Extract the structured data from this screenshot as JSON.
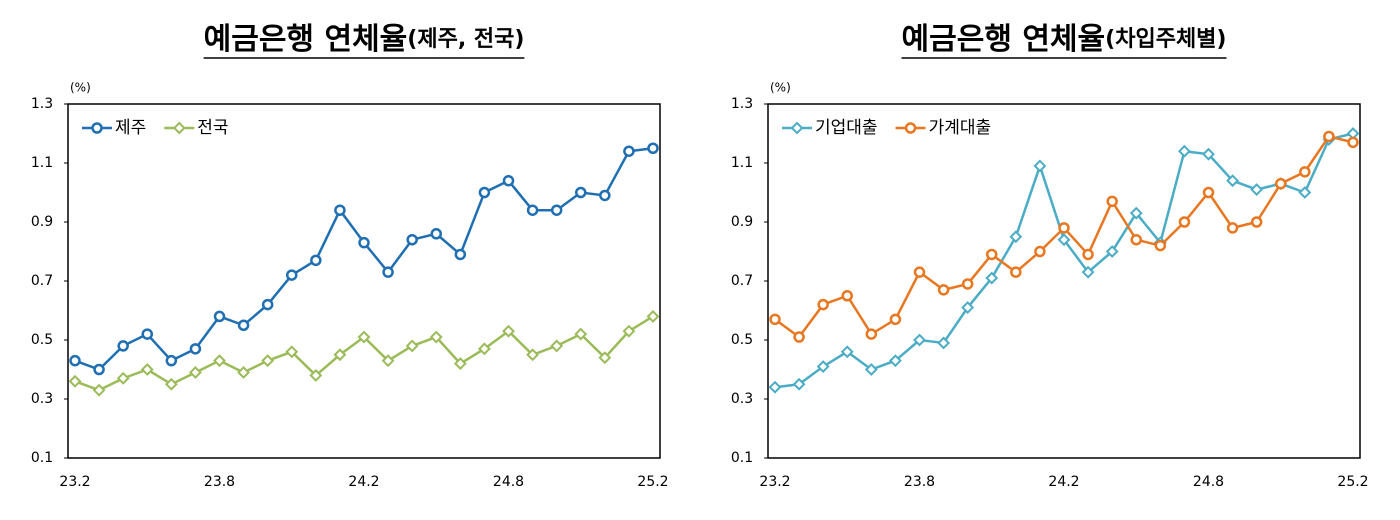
{
  "chart_data": [
    {
      "type": "line",
      "title": "예금은행 연체율",
      "title_note": "(제주, 전국)",
      "unit": "(%)",
      "categories": [
        "23.2",
        null,
        null,
        null,
        null,
        null,
        "23.8",
        null,
        null,
        null,
        null,
        null,
        "24.2",
        null,
        null,
        null,
        null,
        null,
        "24.8",
        null,
        null,
        null,
        null,
        null,
        "25.2"
      ],
      "series": [
        {
          "name": "제주",
          "color": "#1f6fb2",
          "marker": "circle",
          "values": [
            0.43,
            0.4,
            0.48,
            0.52,
            0.43,
            0.47,
            0.58,
            0.55,
            0.62,
            0.72,
            0.77,
            0.94,
            0.83,
            0.73,
            0.84,
            0.86,
            0.79,
            1.0,
            1.04,
            0.94,
            0.94,
            1.0,
            0.99,
            1.14,
            1.15
          ]
        },
        {
          "name": "전국",
          "color": "#9bbb59",
          "marker": "diamond",
          "values": [
            0.36,
            0.33,
            0.37,
            0.4,
            0.35,
            0.39,
            0.43,
            0.39,
            0.43,
            0.46,
            0.38,
            0.45,
            0.51,
            0.43,
            0.48,
            0.51,
            0.42,
            0.47,
            0.53,
            0.45,
            0.48,
            0.52,
            0.44,
            0.53,
            0.58
          ]
        }
      ],
      "ylim": [
        0.1,
        1.3
      ],
      "yticks": [
        0.1,
        0.3,
        0.5,
        0.7,
        0.9,
        1.1,
        1.3
      ],
      "legend": "upper left"
    },
    {
      "type": "line",
      "title": "예금은행 연체율",
      "title_note": "(차입주체별)",
      "unit": "(%)",
      "categories": [
        "23.2",
        null,
        null,
        null,
        null,
        null,
        "23.8",
        null,
        null,
        null,
        null,
        null,
        "24.2",
        null,
        null,
        null,
        null,
        null,
        "24.8",
        null,
        null,
        null,
        null,
        null,
        "25.2"
      ],
      "series": [
        {
          "name": "기업대출",
          "color": "#4bacc6",
          "marker": "diamond",
          "values": [
            0.34,
            0.35,
            0.41,
            0.46,
            0.4,
            0.43,
            0.5,
            0.49,
            0.61,
            0.71,
            0.85,
            1.09,
            0.84,
            0.73,
            0.8,
            0.93,
            0.83,
            1.14,
            1.13,
            1.04,
            1.01,
            1.03,
            1.0,
            1.18,
            1.2
          ]
        },
        {
          "name": "가계대출",
          "color": "#e87722",
          "marker": "circle",
          "values": [
            0.57,
            0.51,
            0.62,
            0.65,
            0.52,
            0.57,
            0.73,
            0.67,
            0.69,
            0.79,
            0.73,
            0.8,
            0.88,
            0.79,
            0.97,
            0.84,
            0.82,
            0.9,
            1.0,
            0.88,
            0.9,
            1.03,
            1.07,
            1.19,
            1.17
          ]
        }
      ],
      "ylim": [
        0.1,
        1.3
      ],
      "yticks": [
        0.1,
        0.3,
        0.5,
        0.7,
        0.9,
        1.1,
        1.3
      ],
      "legend": "upper left"
    }
  ]
}
